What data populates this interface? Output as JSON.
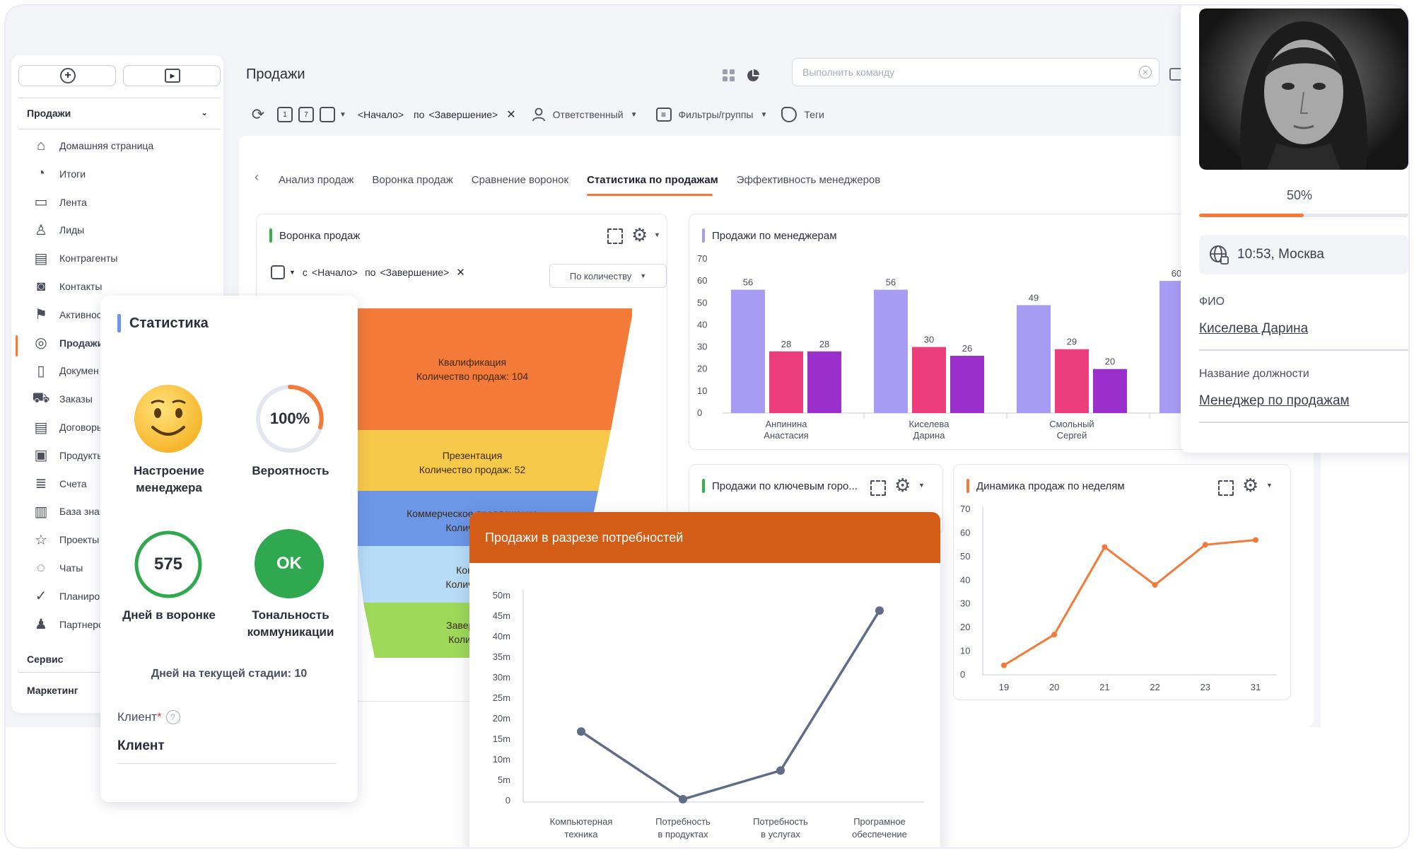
{
  "header": {
    "title": "Продажи",
    "command_placeholder": "Выполнить команду",
    "toolbar": {
      "date_from": "<Начало>",
      "date_to_prefix": "по",
      "date_to": "<Завершение>",
      "responsible": "Ответственный",
      "filters": "Фильтры/группы",
      "tags": "Теги"
    }
  },
  "sidebar": {
    "section": "Продажи",
    "items": [
      {
        "label": "Домашняя страница",
        "icon": "home-icon"
      },
      {
        "label": "Итоги",
        "icon": "pie-icon"
      },
      {
        "label": "Лента",
        "icon": "chat-bubble-icon"
      },
      {
        "label": "Лиды",
        "icon": "leads-icon"
      },
      {
        "label": "Контрагенты",
        "icon": "document-icon"
      },
      {
        "label": "Контакты",
        "icon": "contact-card-icon"
      },
      {
        "label": "Активнос",
        "icon": "flag-icon"
      },
      {
        "label": "Продажи",
        "icon": "coins-icon"
      },
      {
        "label": "Докумен",
        "icon": "file-icon"
      },
      {
        "label": "Заказы",
        "icon": "cart-icon"
      },
      {
        "label": "Договоры",
        "icon": "contract-icon"
      },
      {
        "label": "Продукть",
        "icon": "wallet-icon"
      },
      {
        "label": "Счета",
        "icon": "invoice-icon"
      },
      {
        "label": "База знан",
        "icon": "book-icon"
      },
      {
        "label": "Проекты",
        "icon": "star-icon"
      },
      {
        "label": "Чаты",
        "icon": "chats-icon"
      },
      {
        "label": "Планиров",
        "icon": "check-circle-icon"
      },
      {
        "label": "Партнерс",
        "icon": "partners-icon"
      }
    ],
    "groups": [
      "Сервис",
      "Маркетинг"
    ]
  },
  "tabs": [
    "Анализ продаж",
    "Воронка продаж",
    "Сравнение воронок",
    "Статистика по продажам",
    "Эффективность менеджеров"
  ],
  "active_tab": "Статистика по продажам",
  "funnel_panel": {
    "title": "Воронка продаж",
    "filter_from_prefix": "с",
    "filter_from": "<Начало>",
    "filter_to_prefix": "по",
    "filter_to": "<Завершение>",
    "mode": "По количеству",
    "stages": [
      {
        "name": "Квалификация",
        "line2": "Количество продаж: 104",
        "value": 104,
        "color": "#f47a3a"
      },
      {
        "name": "Презентация",
        "line2": "Количество продаж: 52",
        "value": 52,
        "color": "#f7c94a"
      },
      {
        "name": "Коммерческое предложение",
        "line2": "Количество",
        "color": "#6d96e6"
      },
      {
        "name": "Контра",
        "line2": "Количество",
        "color": "#b7dcf6"
      },
      {
        "name": "Завершена",
        "line2": "Количеств",
        "color": "#9ed95a"
      }
    ]
  },
  "managers_panel": {
    "title": "Продажи по менеджерам",
    "chart_data": {
      "type": "bar",
      "categories": [
        "Анпинина Анастасия",
        "Киселева Дарина",
        "Смольный Сергей",
        ""
      ],
      "series": [
        {
          "values": [
            56,
            56,
            49,
            60
          ],
          "color": "#a89bf4"
        },
        {
          "values": [
            28,
            30,
            29,
            null
          ],
          "color": "#ec3d7c"
        },
        {
          "values": [
            28,
            26,
            20,
            null
          ],
          "color": "#9a2fcc"
        }
      ],
      "ylim": [
        0,
        70
      ],
      "yticks": [
        0,
        10,
        20,
        30,
        40,
        50,
        60,
        70
      ]
    }
  },
  "cities_panel": {
    "title": "Продажи по ключевым горо..."
  },
  "weekly_panel": {
    "title": "Динамика продаж по неделям",
    "chart_data": {
      "type": "line",
      "x": [
        "19",
        "20",
        "21",
        "22",
        "23",
        "31"
      ],
      "values": [
        4,
        17,
        54,
        38,
        55,
        57
      ],
      "ylim": [
        0,
        70
      ],
      "yticks": [
        0,
        10,
        20,
        30,
        40,
        50,
        60,
        70
      ],
      "color": "#f47a3a"
    }
  },
  "stats_card": {
    "title": "Статистика",
    "mood_label_1": "Настроение",
    "mood_label_2": "менеджера",
    "probability_value": "100%",
    "probability_label": "Вероятность",
    "days_value": "575",
    "days_label": "Дней в воронке",
    "tone_value": "OK",
    "tone_label_1": "Тональность",
    "tone_label_2": "коммуникации",
    "stage_days": "Дней на текущей стадии: 10",
    "client_label": "Клиент",
    "client_value": "Клиент"
  },
  "needs_panel": {
    "title": "Продажи в разрезе потребностей",
    "chart_data": {
      "type": "line",
      "categories": [
        "Компьютерная техника",
        "Потребность в продуктах",
        "Потребность в услугах",
        "Програмное обеспечение"
      ],
      "tick_lines": [
        [
          "Компьютерная",
          "техника"
        ],
        [
          "Потребность",
          "в продуктах"
        ],
        [
          "Потребность",
          "в услугах"
        ],
        [
          "Програмное",
          "обеспечение"
        ]
      ],
      "values": [
        16.5,
        0,
        7,
        46
      ],
      "ylim": [
        0,
        50
      ],
      "yticks": [
        "0",
        "5m",
        "10m",
        "15m",
        "20m",
        "25m",
        "30m",
        "35m",
        "40m",
        "45m",
        "50m"
      ],
      "color": "#5f6d88"
    }
  },
  "profile_card": {
    "progress_text": "50%",
    "progress": 0.5,
    "time": "10:53, Москва",
    "fio_label": "ФИО",
    "fio_value": "Киселева Дарина",
    "position_label": "Название должности",
    "position_value": "Менеджер по продажам"
  }
}
